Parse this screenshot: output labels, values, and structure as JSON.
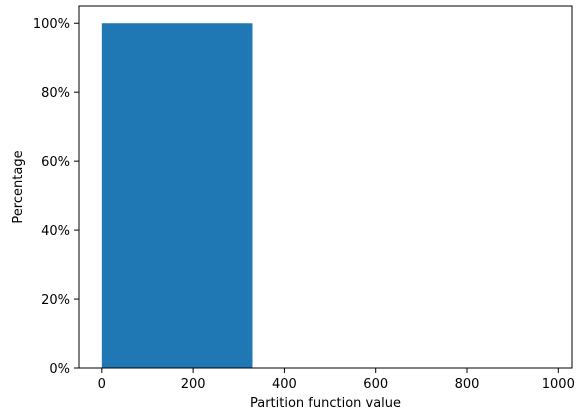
{
  "chart_data": {
    "type": "bar",
    "bars": [
      {
        "x_start": 0,
        "x_end": 330,
        "value": 100
      }
    ],
    "xlabel": "Partition function value",
    "ylabel": "Percentage",
    "xlim": [
      -50,
      1030
    ],
    "ylim": [
      0,
      105
    ],
    "x_ticks": [
      0,
      200,
      400,
      600,
      800,
      1000
    ],
    "y_ticks": [
      0,
      20,
      40,
      60,
      80,
      100
    ],
    "x_tick_labels": [
      "0",
      "200",
      "400",
      "600",
      "800",
      "1000"
    ],
    "y_tick_labels": [
      "0%",
      "20%",
      "40%",
      "60%",
      "80%",
      "100%"
    ],
    "bar_color": "#1f77b4",
    "grid": false,
    "legend": "none"
  }
}
